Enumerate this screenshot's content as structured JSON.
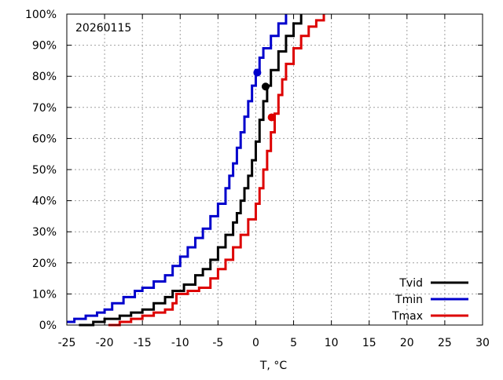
{
  "chart_data": {
    "type": "line",
    "annotation": "20260115",
    "xlabel": "T, °C",
    "ylabel": "",
    "xlim": [
      -25,
      30
    ],
    "ylim": [
      0,
      100
    ],
    "x_ticks": [
      -25,
      -20,
      -15,
      -10,
      -5,
      0,
      5,
      10,
      15,
      20,
      25,
      30
    ],
    "x_tick_labels": [
      "-25",
      "-20",
      "-15",
      "-10",
      "-5",
      "0",
      "5",
      "10",
      "15",
      "20",
      "25",
      "30"
    ],
    "y_ticks": [
      0,
      10,
      20,
      30,
      40,
      50,
      60,
      70,
      80,
      90,
      100
    ],
    "y_tick_labels": [
      "0%",
      "10%",
      "20%",
      "30%",
      "40%",
      "50%",
      "60%",
      "70%",
      "80%",
      "90%",
      "100%"
    ],
    "grid": true,
    "legend_position": "bottom-right",
    "series": [
      {
        "name": "Tvid",
        "color": "#000000",
        "x": [
          -23.4,
          -21.5,
          -20,
          -18,
          -16.5,
          -15,
          -13.5,
          -12,
          -11,
          -9.5,
          -8,
          -7,
          -6,
          -5,
          -4,
          -3,
          -2.5,
          -2,
          -1.5,
          -1,
          -0.5,
          0,
          0.5,
          1,
          1.5,
          2,
          3,
          4,
          5,
          6
        ],
        "y": [
          0,
          1,
          2,
          3,
          4,
          5,
          7,
          9,
          11,
          13,
          16,
          18,
          21,
          25,
          29,
          33,
          36,
          40,
          44,
          48,
          53,
          59,
          66,
          72,
          77,
          82,
          88,
          93,
          97,
          100
        ],
        "marker": {
          "x": 1.3,
          "y": 76.7
        }
      },
      {
        "name": "Tmin",
        "color": "#0000cc",
        "x": [
          -25,
          -24,
          -22.5,
          -21,
          -20,
          -19,
          -17.5,
          -16,
          -15,
          -13.5,
          -12,
          -11,
          -10,
          -9,
          -8,
          -7,
          -6,
          -5,
          -4,
          -3.5,
          -3,
          -2.5,
          -2,
          -1.5,
          -1,
          -0.5,
          0,
          0.5,
          1,
          2,
          3,
          4
        ],
        "y": [
          1,
          2,
          3,
          4,
          5,
          7,
          9,
          11,
          12,
          14,
          16,
          19,
          22,
          25,
          28,
          31,
          35,
          39,
          44,
          48,
          52,
          57,
          62,
          67,
          72,
          77,
          82,
          86,
          89,
          93,
          97,
          100
        ],
        "marker": {
          "x": 0.2,
          "y": 81.2
        }
      },
      {
        "name": "Tmax",
        "color": "#dd0000",
        "x": [
          -19.5,
          -18,
          -16.5,
          -15,
          -13.5,
          -12,
          -11,
          -10.5,
          -9,
          -7.5,
          -6,
          -5,
          -4,
          -3,
          -2,
          -1,
          0,
          0.5,
          1,
          1.5,
          2,
          2.5,
          3,
          3.5,
          4,
          5,
          6,
          7,
          8,
          9
        ],
        "y": [
          0,
          1,
          2,
          3,
          4,
          5,
          7,
          10,
          11,
          12,
          15,
          18,
          21,
          25,
          29,
          34,
          39,
          44,
          50,
          56,
          62,
          68,
          74,
          79,
          84,
          89,
          93,
          96,
          98,
          100
        ],
        "marker": {
          "x": 2.1,
          "y": 66.8
        }
      }
    ]
  }
}
